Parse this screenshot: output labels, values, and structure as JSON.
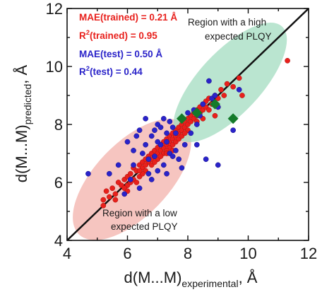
{
  "chart_data": {
    "type": "scatter",
    "title": "",
    "xlabel": {
      "prefix": "d(M...M)",
      "sub": "experimental",
      "suffix": ", Å"
    },
    "ylabel": {
      "prefix": "d(M...M)",
      "sub": "predicted",
      "suffix": ", Å"
    },
    "xlim": [
      4,
      12
    ],
    "ylim": [
      4,
      12
    ],
    "x_ticks": [
      4,
      6,
      8,
      10,
      12
    ],
    "y_ticks": [
      4,
      6,
      8,
      10,
      12
    ],
    "grid": false,
    "identity_line": true,
    "colors": {
      "train": "#e8201c",
      "test": "#2a23c9",
      "highlight": "#147a2a",
      "low_region": "#f3b2ab",
      "high_region": "#a3dcc0",
      "axis": "#111111"
    },
    "annotations": [
      {
        "id": "mae_train",
        "text": "MAE(trained) = 0.21 Å",
        "color": "#e8201c"
      },
      {
        "id": "r2_train_prefix",
        "text": "R",
        "color": "#e8201c"
      },
      {
        "id": "r2_train_sup",
        "text": "2",
        "color": "#e8201c"
      },
      {
        "id": "r2_train_rest",
        "text": "(trained) = 0.95",
        "color": "#e8201c"
      },
      {
        "id": "mae_test",
        "text": "MAE(test) = 0.50 Å",
        "color": "#2a23c9"
      },
      {
        "id": "r2_test_prefix",
        "text": "R",
        "color": "#2a23c9"
      },
      {
        "id": "r2_test_sup",
        "text": "2",
        "color": "#2a23c9"
      },
      {
        "id": "r2_test_rest",
        "text": "(test) = 0.44",
        "color": "#2a23c9"
      }
    ],
    "regions": {
      "high": {
        "line1": "Region with a high",
        "line2": "expected PLQY"
      },
      "low": {
        "line1": "Region with a low",
        "line2": "expected PLQY"
      }
    },
    "series": [
      {
        "id": "trained",
        "points": [
          [
            5.2,
            5.4
          ],
          [
            5.3,
            5.7
          ],
          [
            5.4,
            5.5
          ],
          [
            5.5,
            5.8
          ],
          [
            5.6,
            5.6
          ],
          [
            5.7,
            6.0
          ],
          [
            5.8,
            5.9
          ],
          [
            5.9,
            6.1
          ],
          [
            6.0,
            6.2
          ],
          [
            6.0,
            5.9
          ],
          [
            6.1,
            6.3
          ],
          [
            6.2,
            6.1
          ],
          [
            6.2,
            6.5
          ],
          [
            6.3,
            6.4
          ],
          [
            6.4,
            6.6
          ],
          [
            6.4,
            6.2
          ],
          [
            6.5,
            6.7
          ],
          [
            6.5,
            6.5
          ],
          [
            6.6,
            6.8
          ],
          [
            6.6,
            6.4
          ],
          [
            6.7,
            6.9
          ],
          [
            6.7,
            6.7
          ],
          [
            6.8,
            7.0
          ],
          [
            6.8,
            6.8
          ],
          [
            6.9,
            7.1
          ],
          [
            6.9,
            6.9
          ],
          [
            7.0,
            7.2
          ],
          [
            7.0,
            7.0
          ],
          [
            7.0,
            6.8
          ],
          [
            7.1,
            7.3
          ],
          [
            7.1,
            7.1
          ],
          [
            7.2,
            7.4
          ],
          [
            7.2,
            7.2
          ],
          [
            7.2,
            7.0
          ],
          [
            7.3,
            7.5
          ],
          [
            7.3,
            7.3
          ],
          [
            7.4,
            7.6
          ],
          [
            7.4,
            7.4
          ],
          [
            7.4,
            7.2
          ],
          [
            7.5,
            7.7
          ],
          [
            7.5,
            7.5
          ],
          [
            7.5,
            7.3
          ],
          [
            7.6,
            7.8
          ],
          [
            7.6,
            7.6
          ],
          [
            7.6,
            7.4
          ],
          [
            7.7,
            7.9
          ],
          [
            7.7,
            7.7
          ],
          [
            7.7,
            7.5
          ],
          [
            7.8,
            8.0
          ],
          [
            7.8,
            7.8
          ],
          [
            7.8,
            7.6
          ],
          [
            7.9,
            8.1
          ],
          [
            7.9,
            7.9
          ],
          [
            8.0,
            8.2
          ],
          [
            8.0,
            8.0
          ],
          [
            8.0,
            7.8
          ],
          [
            8.1,
            8.3
          ],
          [
            8.1,
            8.1
          ],
          [
            8.2,
            8.4
          ],
          [
            8.2,
            8.2
          ],
          [
            8.3,
            8.5
          ],
          [
            8.3,
            8.3
          ],
          [
            8.4,
            8.6
          ],
          [
            8.4,
            8.4
          ],
          [
            8.5,
            8.7
          ],
          [
            8.5,
            8.5
          ],
          [
            8.6,
            8.8
          ],
          [
            8.6,
            8.6
          ],
          [
            8.7,
            8.9
          ],
          [
            8.8,
            8.7
          ],
          [
            8.9,
            9.0
          ],
          [
            9.0,
            8.9
          ],
          [
            9.1,
            9.2
          ],
          [
            9.2,
            9.0
          ],
          [
            9.3,
            9.4
          ],
          [
            9.5,
            9.3
          ],
          [
            9.7,
            9.6
          ],
          [
            11.3,
            10.2
          ],
          [
            9.8,
            9.0
          ],
          [
            8.9,
            8.3
          ],
          [
            6.3,
            6.0
          ],
          [
            6.1,
            6.0
          ],
          [
            5.9,
            5.8
          ],
          [
            6.5,
            6.3
          ],
          [
            6.8,
            6.6
          ],
          [
            7.1,
            6.9
          ],
          [
            7.3,
            7.1
          ],
          [
            7.5,
            7.1
          ],
          [
            7.9,
            7.7
          ],
          [
            8.3,
            8.1
          ],
          [
            8.5,
            8.2
          ],
          [
            8.7,
            8.5
          ],
          [
            9.0,
            8.6
          ],
          [
            5.2,
            5.2
          ],
          [
            5.6,
            5.4
          ],
          [
            6.0,
            5.7
          ],
          [
            6.4,
            6.4
          ],
          [
            6.6,
            6.6
          ],
          [
            6.9,
            6.7
          ],
          [
            7.3,
            7.0
          ]
        ]
      },
      {
        "id": "test",
        "points": [
          [
            4.7,
            6.3
          ],
          [
            5.7,
            6.6
          ],
          [
            5.9,
            5.6
          ],
          [
            6.0,
            7.4
          ],
          [
            6.1,
            6.1
          ],
          [
            6.2,
            7.1
          ],
          [
            6.3,
            7.6
          ],
          [
            6.4,
            7.8
          ],
          [
            6.4,
            5.8
          ],
          [
            6.5,
            7.0
          ],
          [
            6.6,
            7.3
          ],
          [
            6.6,
            8.2
          ],
          [
            6.7,
            6.3
          ],
          [
            6.8,
            7.6
          ],
          [
            6.8,
            6.1
          ],
          [
            6.9,
            7.8
          ],
          [
            7.0,
            6.4
          ],
          [
            7.0,
            8.0
          ],
          [
            7.1,
            7.3
          ],
          [
            7.1,
            7.9
          ],
          [
            7.2,
            6.6
          ],
          [
            7.2,
            8.2
          ],
          [
            7.3,
            7.7
          ],
          [
            7.3,
            6.3
          ],
          [
            7.4,
            7.0
          ],
          [
            7.4,
            8.1
          ],
          [
            7.5,
            6.9
          ],
          [
            7.5,
            7.9
          ],
          [
            7.6,
            7.1
          ],
          [
            7.6,
            7.7
          ],
          [
            7.7,
            6.8
          ],
          [
            7.8,
            8.2
          ],
          [
            7.8,
            6.5
          ],
          [
            7.9,
            7.3
          ],
          [
            8.0,
            8.4
          ],
          [
            8.1,
            7.7
          ],
          [
            8.2,
            8.5
          ],
          [
            8.3,
            7.3
          ],
          [
            8.4,
            8.3
          ],
          [
            8.5,
            8.7
          ],
          [
            8.6,
            6.8
          ],
          [
            8.7,
            9.5
          ],
          [
            8.8,
            8.9
          ],
          [
            8.9,
            9.0
          ],
          [
            9.0,
            6.6
          ],
          [
            9.0,
            8.6
          ],
          [
            9.5,
            7.8
          ],
          [
            9.7,
            9.2
          ],
          [
            6.9,
            6.9
          ],
          [
            8.3,
            8.0
          ],
          [
            7.3,
            7.4
          ],
          [
            6.2,
            6.6
          ],
          [
            5.4,
            6.3
          ],
          [
            7.0,
            7.4
          ],
          [
            6.7,
            6.8
          ]
        ]
      },
      {
        "id": "highlight",
        "points": [
          [
            7.8,
            8.2
          ],
          [
            8.3,
            8.4
          ],
          [
            8.9,
            8.7
          ],
          [
            9.5,
            8.2
          ]
        ]
      }
    ]
  }
}
